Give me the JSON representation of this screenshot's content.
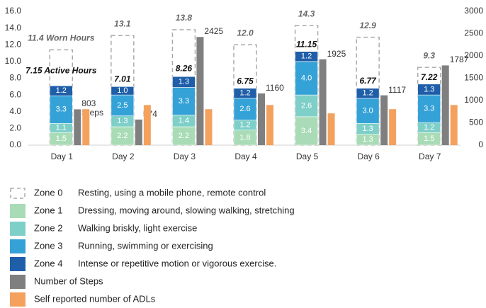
{
  "chart_data": {
    "type": "stacked_bar",
    "categories": [
      "Day 1",
      "Day 2",
      "Day 3",
      "Day 4",
      "Day 5",
      "Day 6",
      "Day 7"
    ],
    "ylim": [
      0,
      16
    ],
    "yticks": [
      {
        "value": 0,
        "label": "0.0"
      },
      {
        "value": 2,
        "label": "2.0"
      },
      {
        "value": 4,
        "label": "4.0"
      },
      {
        "value": 6,
        "label": "6.0"
      },
      {
        "value": 8,
        "label": "8.0"
      },
      {
        "value": 10,
        "label": "10.0"
      },
      {
        "value": 12,
        "label": "12.0"
      },
      {
        "value": 14,
        "label": "14.0"
      },
      {
        "value": 16,
        "label": "16.0"
      }
    ],
    "y2lim": [
      0,
      3000
    ],
    "y2ticks": [
      0,
      500,
      1000,
      1500,
      2000,
      2500,
      3000
    ],
    "grid": false,
    "legend": "bottom",
    "worn_series": {
      "name": "Zone 0",
      "description": "Resting, using a mobile phone, remote control",
      "color": "#aaaaaa",
      "values": [
        11.4,
        13.1,
        13.8,
        12.0,
        14.3,
        12.9,
        9.3
      ],
      "value_labels": [
        "11.4 Worn Hours",
        "13.1",
        "13.8",
        "12.0",
        "14.3",
        "12.9",
        "9.3"
      ]
    },
    "active_totals": {
      "values": [
        7.15,
        7.01,
        8.26,
        6.75,
        11.15,
        6.77,
        7.22
      ],
      "value_labels": [
        "7.15 Active Hours",
        "7.01",
        "8.26",
        "6.75",
        "11.15",
        "6.77",
        "7.22"
      ]
    },
    "series": [
      {
        "name": "Zone 1",
        "description": "Dressing, moving around, slowing walking, stretching",
        "color": "#a9dcb6",
        "values": [
          1.5,
          2.2,
          2.2,
          1.8,
          3.4,
          1.3,
          1.5
        ],
        "value_labels": [
          "1.5",
          "2.2",
          "2.2",
          "1.8",
          "3.4",
          "1.3",
          "1.5"
        ]
      },
      {
        "name": "Zone 2",
        "description": "Walking briskly, light exercise",
        "color": "#7fcfc9",
        "values": [
          1.1,
          1.3,
          1.4,
          1.2,
          2.6,
          1.3,
          1.2
        ],
        "value_labels": [
          "1.1",
          "1.3",
          "1.4",
          "1.2",
          "2.6",
          "1.3",
          "1.2"
        ]
      },
      {
        "name": "Zone 3",
        "description": "Running, swimming or exercising",
        "color": "#35a2d7",
        "values": [
          3.3,
          2.5,
          3.3,
          2.6,
          4.0,
          3.0,
          3.3
        ],
        "value_labels": [
          "3.3",
          "2.5",
          "3.3",
          "2.6",
          "4.0",
          "3.0",
          "3.3"
        ]
      },
      {
        "name": "Zone 4",
        "description": "Intense or repetitive motion or vigorous exercise.",
        "color": "#1f5ea8",
        "values": [
          1.2,
          1.0,
          1.3,
          1.2,
          1.2,
          1.2,
          1.3
        ],
        "value_labels": [
          "1.2",
          "1.0",
          "1.3",
          "1.2",
          "1.2",
          "1.2",
          "1.3"
        ]
      }
    ],
    "steps": {
      "name": "Number of Steps",
      "color": "#7f7f7f",
      "axis": "y2",
      "values": [
        803,
        574,
        2425,
        1160,
        1925,
        1117,
        1787
      ],
      "value_labels": [
        "803 Steps",
        "574",
        "2425",
        "1160",
        "1925",
        "1117",
        "1787"
      ]
    },
    "adls": {
      "name": "Self reported number of ADLs",
      "color": "#f4a15e",
      "values": [
        4.3,
        4.8,
        4.3,
        4.8,
        3.8,
        4.3,
        4.8
      ]
    }
  }
}
